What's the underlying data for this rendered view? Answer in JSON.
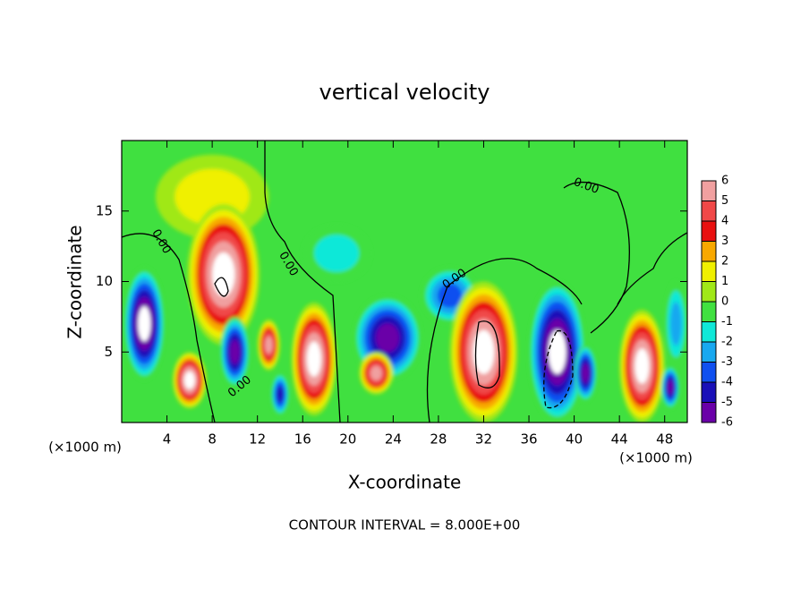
{
  "chart_data": {
    "type": "contour",
    "title": "vertical velocity",
    "x_label": "X-coordinate",
    "y_label": "Z-coordinate",
    "x_unit_label": "(×1000 m)",
    "xlim": [
      0,
      50
    ],
    "ylim": [
      0,
      20
    ],
    "xticks": [
      4,
      8,
      12,
      16,
      20,
      24,
      28,
      32,
      36,
      40,
      44,
      48
    ],
    "yticks": [
      5,
      10,
      15
    ],
    "contour_label": "0.00",
    "contour_interval": "CONTOUR INTERVAL = 8.000E+00",
    "colorbar": {
      "ticks": [
        6,
        5,
        4,
        3,
        2,
        1,
        0,
        -1,
        -2,
        -3,
        -4,
        -5,
        -6
      ],
      "lim": [
        -6,
        6
      ],
      "colors": [
        "#6a00a8",
        "#1a10b8",
        "#1050f0",
        "#18a8f0",
        "#10e8d8",
        "#40e040",
        "#a0e818",
        "#f0f000",
        "#f8a800",
        "#e81010",
        "#f04848",
        "#f0a0a0"
      ],
      "over_color": "#ffffff"
    },
    "cells": [
      {
        "x": 8,
        "z": 16,
        "w": 2,
        "rx": 5,
        "rz": 3
      },
      {
        "x": 19,
        "z": 12,
        "w": -2,
        "rx": 3,
        "rz": 2
      },
      {
        "x": 9,
        "z": 10.5,
        "w": 7,
        "rx": 3.2,
        "rz": 5
      },
      {
        "x": 2,
        "z": 7,
        "w": -7,
        "rx": 1.8,
        "rz": 4
      },
      {
        "x": 6,
        "z": 3,
        "w": 7,
        "rx": 1.5,
        "rz": 2
      },
      {
        "x": 10,
        "z": 5,
        "w": -6,
        "rx": 1.3,
        "rz": 2.5
      },
      {
        "x": 13,
        "z": 5.5,
        "w": 6,
        "rx": 1,
        "rz": 1.8
      },
      {
        "x": 17,
        "z": 4.5,
        "w": 7,
        "rx": 2,
        "rz": 4
      },
      {
        "x": 14,
        "z": 2,
        "w": -5,
        "rx": 0.8,
        "rz": 1.5
      },
      {
        "x": 23.5,
        "z": 6,
        "w": -6,
        "rx": 3,
        "rz": 3
      },
      {
        "x": 22.5,
        "z": 3.5,
        "w": 6,
        "rx": 1.5,
        "rz": 1.5
      },
      {
        "x": 29,
        "z": 9,
        "w": -4,
        "rx": 2.5,
        "rz": 2
      },
      {
        "x": 32,
        "z": 5,
        "w": 7,
        "rx": 3,
        "rz": 5
      },
      {
        "x": 38.5,
        "z": 5,
        "w": -7,
        "rx": 2.5,
        "rz": 5
      },
      {
        "x": 41,
        "z": 3.5,
        "w": -6,
        "rx": 1,
        "rz": 2
      },
      {
        "x": 46,
        "z": 4,
        "w": 7,
        "rx": 2,
        "rz": 4
      },
      {
        "x": 48.5,
        "z": 2.5,
        "w": -6,
        "rx": 0.8,
        "rz": 1.5
      },
      {
        "x": 49,
        "z": 7,
        "w": -3,
        "rx": 1,
        "rz": 3
      }
    ]
  }
}
